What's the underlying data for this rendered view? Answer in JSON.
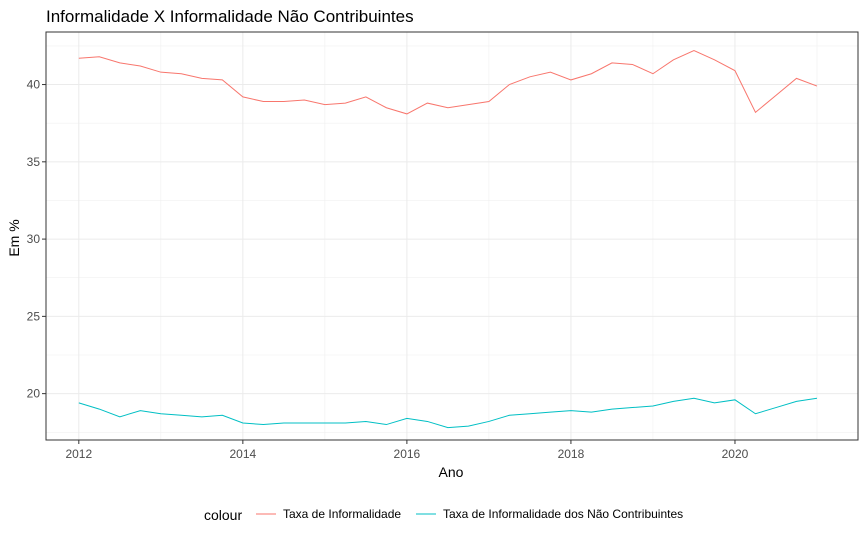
{
  "chart_data": {
    "type": "line",
    "title": "Informalidade X Informalidade Não Contribuintes",
    "xlabel": "Ano",
    "ylabel": "Em %",
    "xlim": [
      2011.6,
      2021.5
    ],
    "ylim": [
      17.0,
      43.4
    ],
    "x_ticks": [
      2012,
      2014,
      2016,
      2018,
      2020
    ],
    "x_tick_labels": [
      "2012",
      "2014",
      "2016",
      "2018",
      "2020"
    ],
    "y_ticks": [
      20,
      25,
      30,
      35,
      40
    ],
    "y_tick_labels": [
      "20",
      "25",
      "30",
      "35",
      "40"
    ],
    "grid": true,
    "legend_position": "bottom",
    "legend_title": "colour",
    "x": [
      2012.0,
      2012.25,
      2012.5,
      2012.75,
      2013.0,
      2013.25,
      2013.5,
      2013.75,
      2014.0,
      2014.25,
      2014.5,
      2014.75,
      2015.0,
      2015.25,
      2015.5,
      2015.75,
      2016.0,
      2016.25,
      2016.5,
      2016.75,
      2017.0,
      2017.25,
      2017.5,
      2017.75,
      2018.0,
      2018.25,
      2018.5,
      2018.75,
      2019.0,
      2019.25,
      2019.5,
      2019.75,
      2020.0,
      2020.25,
      2020.5,
      2020.75,
      2021.0
    ],
    "series": [
      {
        "name": "Taxa de Informalidade",
        "color": "#F8766D",
        "values": [
          41.7,
          41.8,
          41.4,
          41.2,
          40.8,
          40.7,
          40.4,
          40.3,
          39.2,
          38.9,
          38.9,
          39.0,
          38.7,
          38.8,
          39.2,
          38.5,
          38.1,
          38.8,
          38.5,
          38.7,
          38.9,
          40.0,
          40.5,
          40.8,
          40.3,
          40.7,
          41.4,
          41.3,
          40.7,
          41.6,
          42.2,
          41.6,
          40.9,
          38.2,
          39.3,
          40.4,
          39.9
        ]
      },
      {
        "name": "Taxa de Informalidade dos Não Contribuintes",
        "color": "#00BFC4",
        "values": [
          19.4,
          19.0,
          18.5,
          18.9,
          18.7,
          18.6,
          18.5,
          18.6,
          18.1,
          18.0,
          18.1,
          18.1,
          18.1,
          18.1,
          18.2,
          18.0,
          18.4,
          18.2,
          17.8,
          17.9,
          18.2,
          18.6,
          18.7,
          18.8,
          18.9,
          18.8,
          19.0,
          19.1,
          19.2,
          19.5,
          19.7,
          19.4,
          19.6,
          18.7,
          19.1,
          19.5,
          19.7
        ]
      }
    ]
  }
}
